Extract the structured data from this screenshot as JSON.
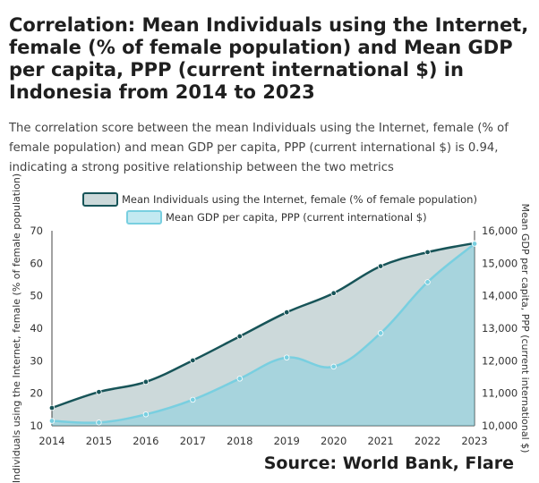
{
  "title": "Correlation: Mean Individuals using the Internet, female (% of female population) and Mean GDP per capita, PPP (current international $) in Indonesia from 2014 to 2023",
  "subtitle": "The correlation score between the mean Individuals using the Internet, female (% of female population) and mean GDP per capita, PPP (current international $) is 0.94, indicating a strong positive relationship between the two metrics",
  "source": "Source: World Bank, Flare",
  "chart_data": {
    "type": "area",
    "x": [
      2014,
      2015,
      2016,
      2017,
      2018,
      2019,
      2020,
      2021,
      2022,
      2023
    ],
    "x_tick_labels": [
      "2014",
      "2015",
      "2016",
      "2017",
      "2018",
      "2019",
      "2020",
      "2021",
      "2022",
      "2023"
    ],
    "ylabel": "Individuals using the Internet, female (% of female population)",
    "ylabel2": "Mean GDP per capita, PPP (current international $)",
    "ylim": [
      10,
      70
    ],
    "y_ticks": [
      10,
      20,
      30,
      40,
      50,
      60,
      70
    ],
    "y2lim": [
      10000,
      16000
    ],
    "y2_ticks": [
      10000,
      11000,
      12000,
      13000,
      14000,
      15000,
      16000
    ],
    "y2_tick_labels": [
      "10,000",
      "11,000",
      "12,000",
      "13,000",
      "14,000",
      "15,000",
      "16,000"
    ],
    "legend_position": "top-center",
    "grid": false,
    "series": [
      {
        "name": "Mean Individuals using the Internet, female (% of female population)",
        "axis": "left",
        "values": [
          15.5,
          20.4,
          23.5,
          30.1,
          37.5,
          44.9,
          50.8,
          59.1,
          63.4,
          66.2
        ],
        "line_color": "#175458",
        "fill_color": "#175458"
      },
      {
        "name": "Mean GDP per capita, PPP (current international $)",
        "axis": "right",
        "values": [
          10150,
          10100,
          10350,
          10800,
          11450,
          12100,
          11820,
          12850,
          14420,
          15600
        ],
        "line_color": "#79cfe0",
        "fill_color": "#79cfe0"
      }
    ]
  }
}
